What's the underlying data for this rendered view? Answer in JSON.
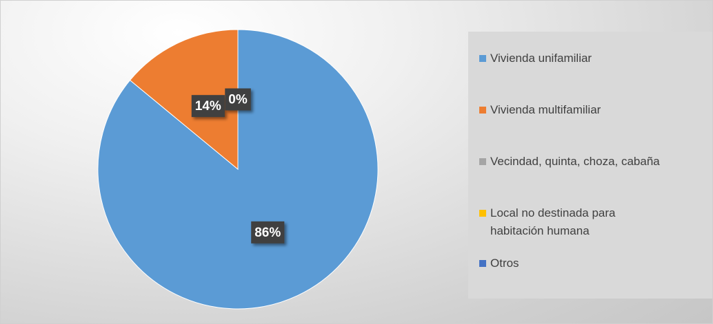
{
  "chart_data": {
    "type": "pie",
    "categories": [
      "Vivienda unifamiliar",
      "Vivienda multifamiliar",
      "Vecindad, quinta, choza, cabaña",
      "Local no destinada para habitación humana",
      "Otros"
    ],
    "values": [
      86,
      14,
      0,
      0,
      0
    ],
    "value_labels": [
      "86%",
      "14%",
      "0%",
      null,
      null
    ],
    "colors": [
      "#5b9bd5",
      "#ed7d31",
      "#a5a5a5",
      "#ffc000",
      "#4472c4"
    ],
    "legend": "right"
  }
}
